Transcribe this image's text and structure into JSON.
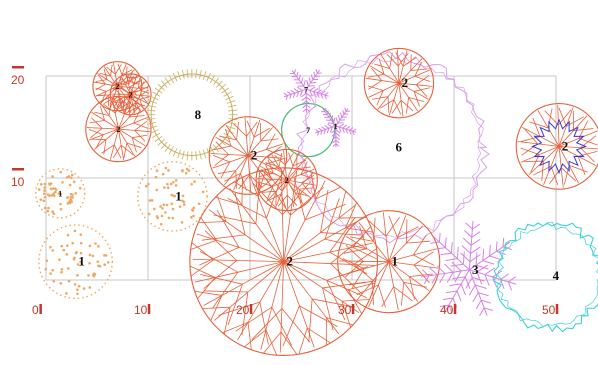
{
  "axis": {
    "x_ticks": [
      {
        "label": "0",
        "value": 0
      },
      {
        "label": "10",
        "value": 10
      },
      {
        "label": "20",
        "value": 20
      },
      {
        "label": "30",
        "value": 30
      },
      {
        "label": "40",
        "value": 40
      },
      {
        "label": "50",
        "value": 50
      }
    ],
    "y_ticks": [
      {
        "label": "10",
        "value": 10
      },
      {
        "label": "20",
        "value": 20
      }
    ]
  },
  "colors": {
    "grid": "#b8b8b8",
    "axis": "#c0392b",
    "type1": "#f0a860",
    "type2": "#e8603a",
    "type3": "#d780e8",
    "type4": "#40d0d8",
    "type6": "#d9a0ee",
    "type7": "#40c070",
    "type8": "#c8b060",
    "blue": "#3a3ad0"
  },
  "plants": [
    {
      "id": "p-2a",
      "label": "2",
      "type": "2",
      "style": "branch",
      "x": 7.0,
      "y": 19.0,
      "r": 2.4
    },
    {
      "id": "p-2b",
      "label": "2",
      "type": "2",
      "style": "branch",
      "x": 8.3,
      "y": 18.2,
      "r": 2.0
    },
    {
      "id": "p-2c",
      "label": "2",
      "type": "2",
      "style": "branch",
      "x": 7.1,
      "y": 14.8,
      "r": 3.2
    },
    {
      "id": "p-8",
      "label": "8",
      "type": "8",
      "style": "grass",
      "x": 14.3,
      "y": 16.2,
      "r": 4.0
    },
    {
      "id": "p-7a",
      "label": "7",
      "type": "3",
      "style": "frond",
      "x": 25.5,
      "y": 18.7,
      "r": 2.3
    },
    {
      "id": "p-7b",
      "label": "7",
      "type": "7",
      "style": "ring",
      "x": 25.7,
      "y": 14.7,
      "r": 2.6
    },
    {
      "id": "p-7c",
      "label": "1",
      "type": "3",
      "style": "frond",
      "x": 28.4,
      "y": 15.1,
      "r": 2.1
    },
    {
      "id": "p-6",
      "label": "6",
      "type": "6",
      "style": "cloud",
      "x": 34.0,
      "y": 13.0,
      "r": 9.0
    },
    {
      "id": "p-6in",
      "label": "2",
      "type": "2",
      "style": "branch",
      "x": 34.6,
      "y": 19.3,
      "r": 3.4
    },
    {
      "id": "p-2d",
      "label": "2",
      "type": "2",
      "style": "branch",
      "x": 19.8,
      "y": 12.2,
      "r": 3.8
    },
    {
      "id": "p-2e",
      "label": "2",
      "type": "2",
      "style": "branch",
      "x": 23.6,
      "y": 9.8,
      "r": 3.0
    },
    {
      "id": "p-2f",
      "label": "2",
      "type": "2",
      "style": "branch-blue",
      "x": 50.3,
      "y": 13.1,
      "r": 4.2
    },
    {
      "id": "p-1a",
      "label": "1",
      "type": "1",
      "style": "dots",
      "x": 1.4,
      "y": 8.5,
      "r": 2.4
    },
    {
      "id": "p-1b",
      "label": "1",
      "type": "1",
      "style": "dots",
      "x": 2.9,
      "y": 1.8,
      "r": 3.6
    },
    {
      "id": "p-1c",
      "label": "1",
      "type": "1",
      "style": "dots",
      "x": 12.4,
      "y": 8.2,
      "r": 3.4
    },
    {
      "id": "p-2g",
      "label": "2",
      "type": "2",
      "style": "branch-big",
      "x": 23.3,
      "y": 1.8,
      "r": 9.2
    },
    {
      "id": "p-2h",
      "label": "1",
      "type": "2",
      "style": "branch",
      "x": 33.6,
      "y": 1.8,
      "r": 5.0
    },
    {
      "id": "p-3",
      "label": "3",
      "type": "3",
      "style": "frond-big",
      "x": 41.5,
      "y": 1.0,
      "r": 4.8
    },
    {
      "id": "p-4",
      "label": "4",
      "type": "4",
      "style": "cloud-cyan",
      "x": 49.4,
      "y": 0.4,
      "r": 5.2
    }
  ]
}
